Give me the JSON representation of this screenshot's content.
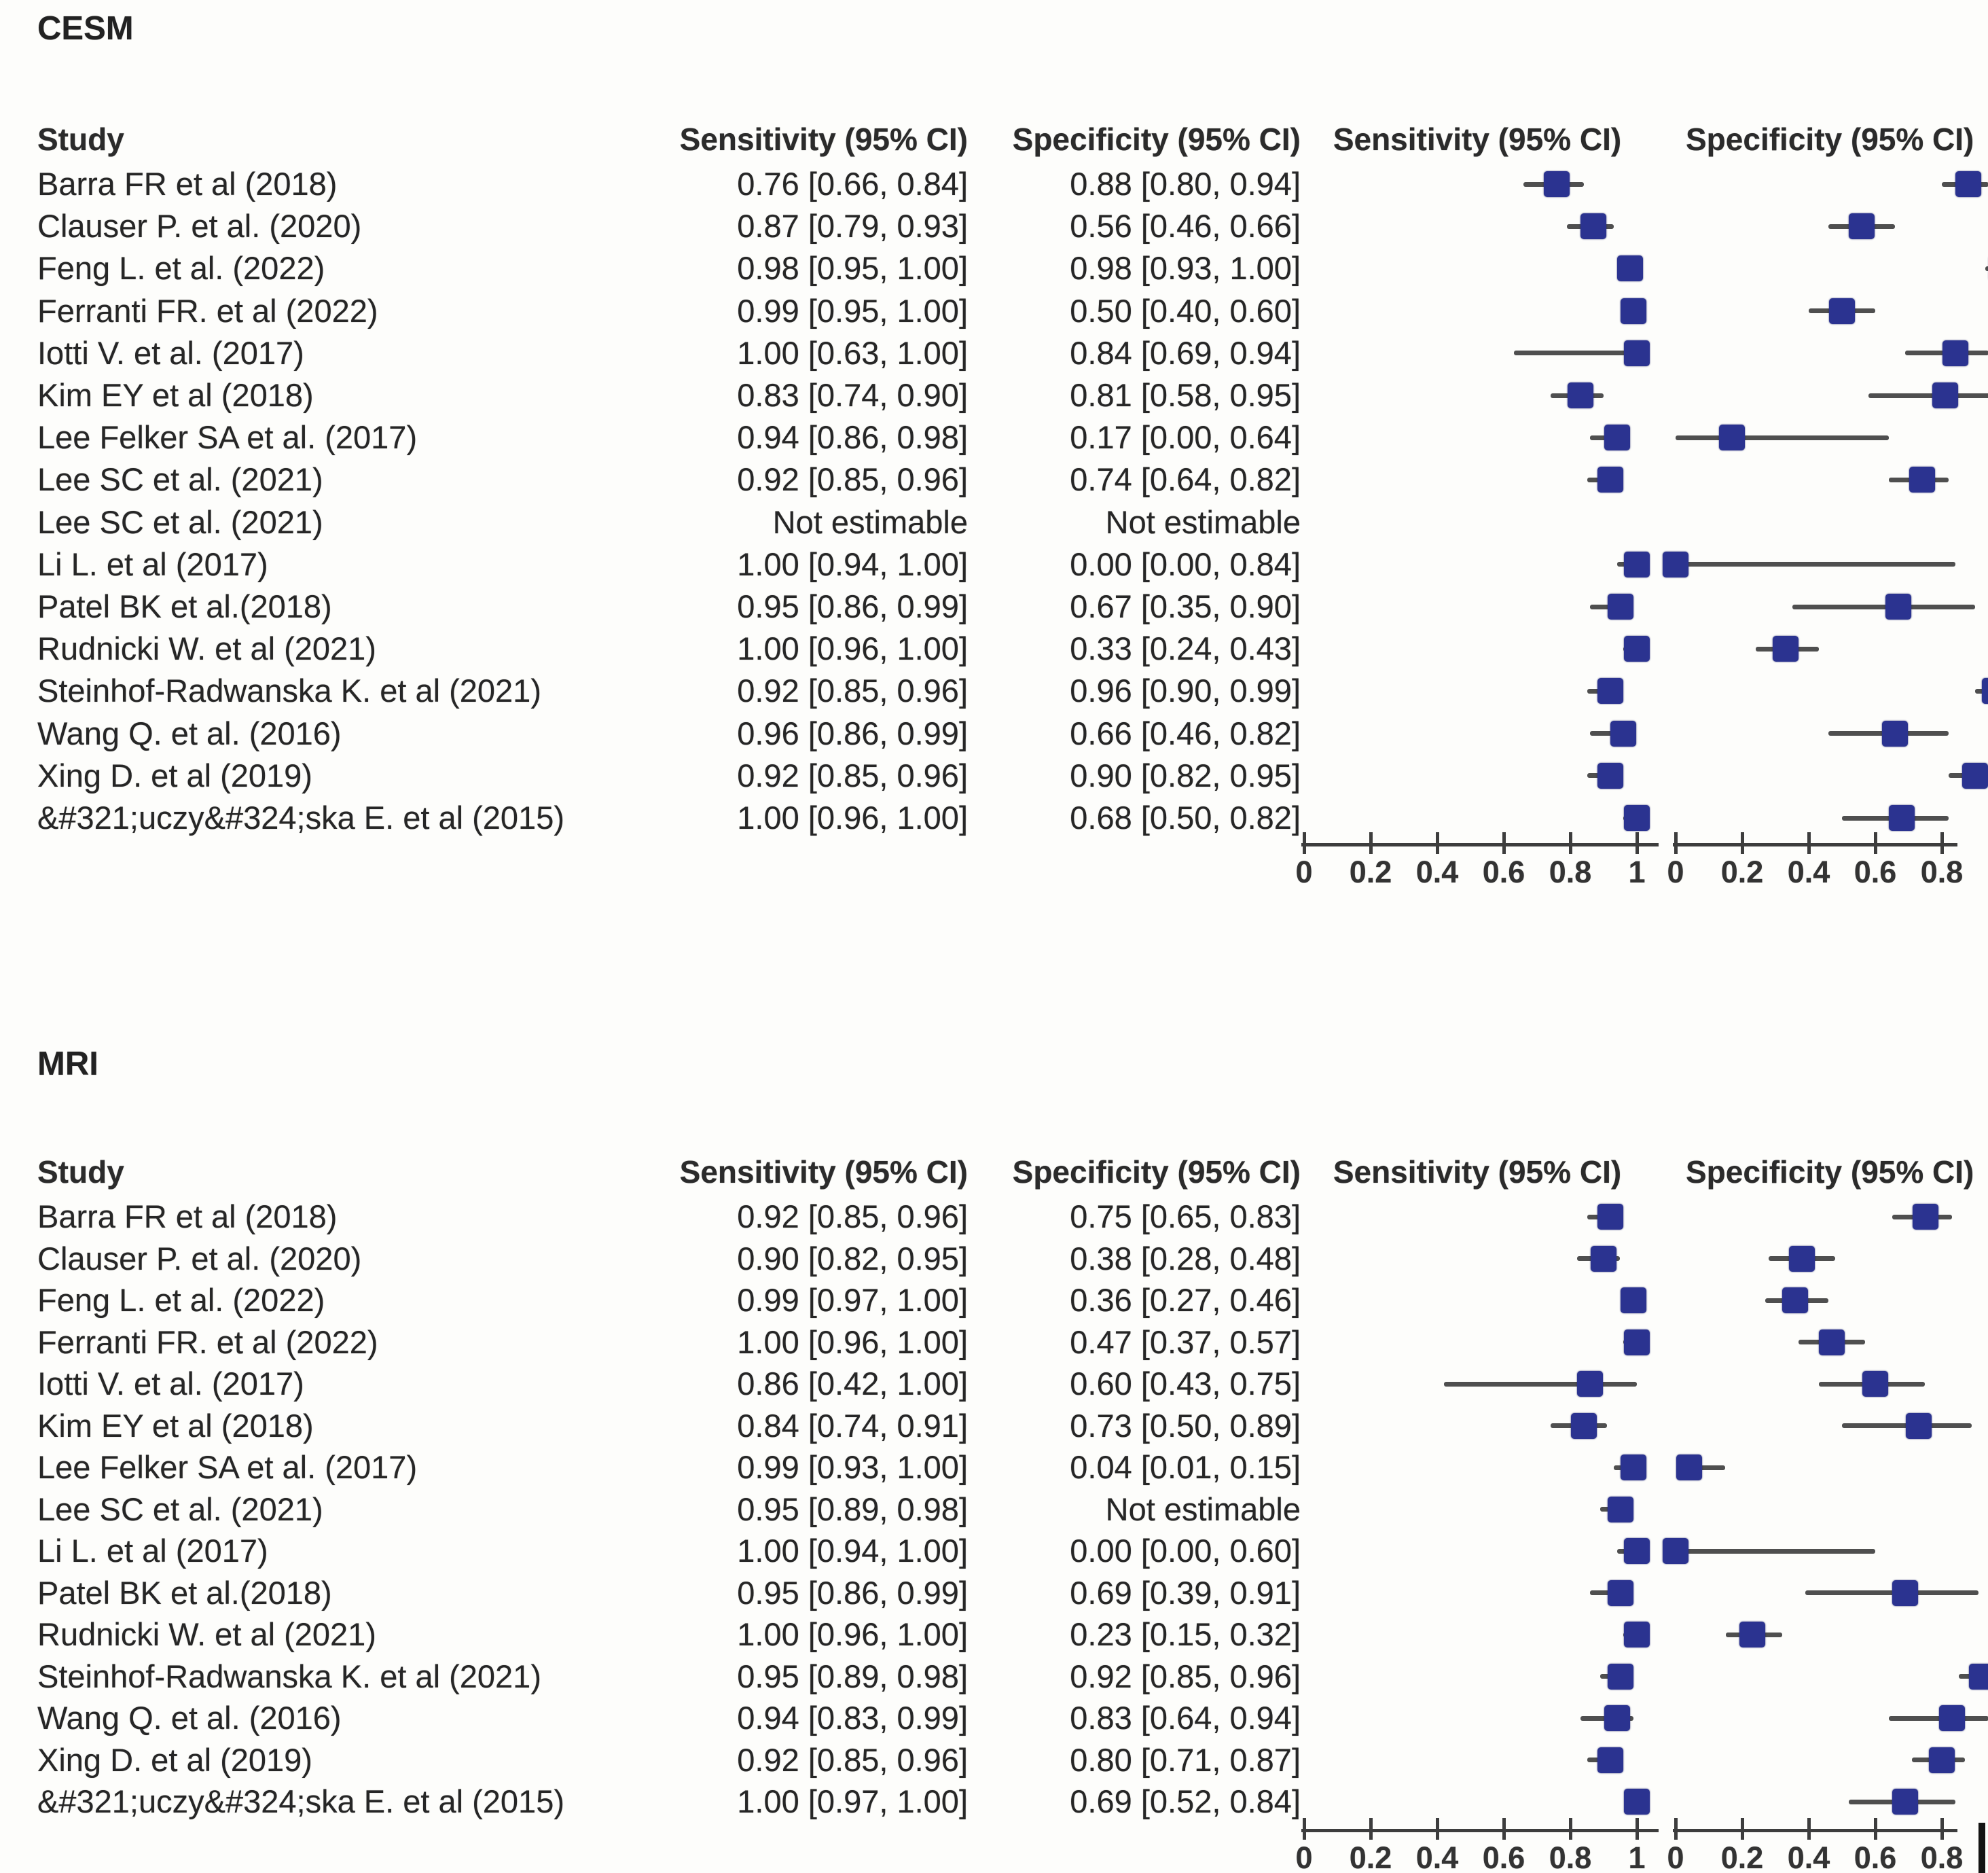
{
  "figure": {
    "not_estimable_label": "Not estimable",
    "colors": {
      "marker_blue": "#2b3390",
      "whisker_gray": "#4f4f4f",
      "axis_gray": "#3d3d3d",
      "text": "#262626",
      "background": "#fdfdfb"
    }
  },
  "chart_data": [
    {
      "type": "scatter",
      "subtype": "forest-plot",
      "title": "CESM",
      "headers": {
        "study": "Study",
        "sensitivity": "Sensitivity (95% CI)",
        "specificity": "Specificity (95% CI)",
        "plot_sensitivity": "Sensitivity (95% CI)",
        "plot_specificity": "Specificity (95% CI)"
      },
      "sens_axis": {
        "range": [
          0,
          1
        ],
        "ticks": [
          0,
          0.2,
          0.4,
          0.6,
          0.8,
          1
        ],
        "tick_labels": [
          "0",
          "0.2",
          "0.4",
          "0.6",
          "0.8",
          "1"
        ]
      },
      "spec_axis": {
        "range": [
          0,
          0.85
        ],
        "ticks": [
          0,
          0.2,
          0.4,
          0.6,
          0.8
        ],
        "tick_labels": [
          "0",
          "0.2",
          "0.4",
          "0.6",
          "0.8"
        ]
      },
      "rows": [
        {
          "study": "Barra FR et al (2018)",
          "sensitivity": {
            "label": "0.76 [0.66, 0.84]",
            "est": 0.76,
            "lo": 0.66,
            "hi": 0.84
          },
          "specificity": {
            "label": "0.88 [0.80, 0.94]",
            "est": 0.88,
            "lo": 0.8,
            "hi": 0.94
          }
        },
        {
          "study": "Clauser P. et al. (2020)",
          "sensitivity": {
            "label": "0.87 [0.79, 0.93]",
            "est": 0.87,
            "lo": 0.79,
            "hi": 0.93
          },
          "specificity": {
            "label": "0.56 [0.46, 0.66]",
            "est": 0.56,
            "lo": 0.46,
            "hi": 0.66
          }
        },
        {
          "study": "Feng L. et al. (2022)",
          "sensitivity": {
            "label": "0.98 [0.95, 1.00]",
            "est": 0.98,
            "lo": 0.95,
            "hi": 1.0
          },
          "specificity": {
            "label": "0.98 [0.93, 1.00]",
            "est": 0.98,
            "lo": 0.93,
            "hi": 1.0
          }
        },
        {
          "study": "Ferranti FR. et al (2022)",
          "sensitivity": {
            "label": "0.99 [0.95, 1.00]",
            "est": 0.99,
            "lo": 0.95,
            "hi": 1.0
          },
          "specificity": {
            "label": "0.50 [0.40, 0.60]",
            "est": 0.5,
            "lo": 0.4,
            "hi": 0.6
          }
        },
        {
          "study": "Iotti V. et al. (2017)",
          "sensitivity": {
            "label": "1.00 [0.63, 1.00]",
            "est": 1.0,
            "lo": 0.63,
            "hi": 1.0
          },
          "specificity": {
            "label": "0.84 [0.69, 0.94]",
            "est": 0.84,
            "lo": 0.69,
            "hi": 0.94
          }
        },
        {
          "study": "Kim EY et al (2018)",
          "sensitivity": {
            "label": "0.83 [0.74, 0.90]",
            "est": 0.83,
            "lo": 0.74,
            "hi": 0.9
          },
          "specificity": {
            "label": "0.81 [0.58, 0.95]",
            "est": 0.81,
            "lo": 0.58,
            "hi": 0.95
          }
        },
        {
          "study": "Lee Felker SA et al. (2017)",
          "sensitivity": {
            "label": "0.94 [0.86, 0.98]",
            "est": 0.94,
            "lo": 0.86,
            "hi": 0.98
          },
          "specificity": {
            "label": "0.17 [0.00, 0.64]",
            "est": 0.17,
            "lo": 0.0,
            "hi": 0.64
          }
        },
        {
          "study": "Lee SC et al. (2021)",
          "sensitivity": {
            "label": "0.92 [0.85, 0.96]",
            "est": 0.92,
            "lo": 0.85,
            "hi": 0.96
          },
          "specificity": {
            "label": "0.74 [0.64, 0.82]",
            "est": 0.74,
            "lo": 0.64,
            "hi": 0.82
          }
        },
        {
          "study": "Lee SC et al. (2021)",
          "sensitivity": {
            "label": "Not estimable",
            "est": null,
            "lo": null,
            "hi": null
          },
          "specificity": {
            "label": "Not estimable",
            "est": null,
            "lo": null,
            "hi": null
          }
        },
        {
          "study": "Li L. et al (2017)",
          "sensitivity": {
            "label": "1.00 [0.94, 1.00]",
            "est": 1.0,
            "lo": 0.94,
            "hi": 1.0
          },
          "specificity": {
            "label": "0.00 [0.00, 0.84]",
            "est": 0.0,
            "lo": 0.0,
            "hi": 0.84
          }
        },
        {
          "study": "Patel BK et al.(2018)",
          "sensitivity": {
            "label": "0.95 [0.86, 0.99]",
            "est": 0.95,
            "lo": 0.86,
            "hi": 0.99
          },
          "specificity": {
            "label": "0.67 [0.35, 0.90]",
            "est": 0.67,
            "lo": 0.35,
            "hi": 0.9
          }
        },
        {
          "study": "Rudnicki W. et al (2021)",
          "sensitivity": {
            "label": "1.00 [0.96, 1.00]",
            "est": 1.0,
            "lo": 0.96,
            "hi": 1.0
          },
          "specificity": {
            "label": "0.33 [0.24, 0.43]",
            "est": 0.33,
            "lo": 0.24,
            "hi": 0.43
          }
        },
        {
          "study": "Steinhof-Radwanska K. et al (2021)",
          "sensitivity": {
            "label": "0.92 [0.85, 0.96]",
            "est": 0.92,
            "lo": 0.85,
            "hi": 0.96
          },
          "specificity": {
            "label": "0.96 [0.90, 0.99]",
            "est": 0.96,
            "lo": 0.9,
            "hi": 0.99
          }
        },
        {
          "study": "Wang Q. et al. (2016)",
          "sensitivity": {
            "label": "0.96 [0.86, 0.99]",
            "est": 0.96,
            "lo": 0.86,
            "hi": 0.99
          },
          "specificity": {
            "label": "0.66 [0.46, 0.82]",
            "est": 0.66,
            "lo": 0.46,
            "hi": 0.82
          }
        },
        {
          "study": "Xing D. et al (2019)",
          "sensitivity": {
            "label": "0.92 [0.85, 0.96]",
            "est": 0.92,
            "lo": 0.85,
            "hi": 0.96
          },
          "specificity": {
            "label": "0.90 [0.82, 0.95]",
            "est": 0.9,
            "lo": 0.82,
            "hi": 0.95
          }
        },
        {
          "study": "&#321;uczy&#324;ska E. et al (2015)",
          "sensitivity": {
            "label": "1.00 [0.96, 1.00]",
            "est": 1.0,
            "lo": 0.96,
            "hi": 1.0
          },
          "specificity": {
            "label": "0.68 [0.50, 0.82]",
            "est": 0.68,
            "lo": 0.5,
            "hi": 0.82
          }
        }
      ]
    },
    {
      "type": "scatter",
      "subtype": "forest-plot",
      "title": "MRI",
      "headers": {
        "study": "Study",
        "sensitivity": "Sensitivity (95% CI)",
        "specificity": "Specificity (95% CI)",
        "plot_sensitivity": "Sensitivity (95% CI)",
        "plot_specificity": "Specificity (95% CI)"
      },
      "sens_axis": {
        "range": [
          0,
          1
        ],
        "ticks": [
          0,
          0.2,
          0.4,
          0.6,
          0.8,
          1
        ],
        "tick_labels": [
          "0",
          "0.2",
          "0.4",
          "0.6",
          "0.8",
          "1"
        ]
      },
      "spec_axis": {
        "range": [
          0,
          0.85
        ],
        "ticks": [
          0,
          0.2,
          0.4,
          0.6,
          0.8
        ],
        "tick_labels": [
          "0",
          "0.2",
          "0.4",
          "0.6",
          "0.8"
        ]
      },
      "rows": [
        {
          "study": "Barra FR et al (2018)",
          "sensitivity": {
            "label": "0.92 [0.85, 0.96]",
            "est": 0.92,
            "lo": 0.85,
            "hi": 0.96
          },
          "specificity": {
            "label": "0.75 [0.65, 0.83]",
            "est": 0.75,
            "lo": 0.65,
            "hi": 0.83
          }
        },
        {
          "study": "Clauser P. et al. (2020)",
          "sensitivity": {
            "label": "0.90 [0.82, 0.95]",
            "est": 0.9,
            "lo": 0.82,
            "hi": 0.95
          },
          "specificity": {
            "label": "0.38 [0.28, 0.48]",
            "est": 0.38,
            "lo": 0.28,
            "hi": 0.48
          }
        },
        {
          "study": "Feng L. et al. (2022)",
          "sensitivity": {
            "label": "0.99 [0.97, 1.00]",
            "est": 0.99,
            "lo": 0.97,
            "hi": 1.0
          },
          "specificity": {
            "label": "0.36 [0.27, 0.46]",
            "est": 0.36,
            "lo": 0.27,
            "hi": 0.46
          }
        },
        {
          "study": "Ferranti FR. et al (2022)",
          "sensitivity": {
            "label": "1.00 [0.96, 1.00]",
            "est": 1.0,
            "lo": 0.96,
            "hi": 1.0
          },
          "specificity": {
            "label": "0.47 [0.37, 0.57]",
            "est": 0.47,
            "lo": 0.37,
            "hi": 0.57
          }
        },
        {
          "study": "Iotti V. et al. (2017)",
          "sensitivity": {
            "label": "0.86 [0.42, 1.00]",
            "est": 0.86,
            "lo": 0.42,
            "hi": 1.0
          },
          "specificity": {
            "label": "0.60 [0.43, 0.75]",
            "est": 0.6,
            "lo": 0.43,
            "hi": 0.75
          }
        },
        {
          "study": "Kim EY et al (2018)",
          "sensitivity": {
            "label": "0.84 [0.74, 0.91]",
            "est": 0.84,
            "lo": 0.74,
            "hi": 0.91
          },
          "specificity": {
            "label": "0.73 [0.50, 0.89]",
            "est": 0.73,
            "lo": 0.5,
            "hi": 0.89
          }
        },
        {
          "study": "Lee Felker SA et al. (2017)",
          "sensitivity": {
            "label": "0.99 [0.93, 1.00]",
            "est": 0.99,
            "lo": 0.93,
            "hi": 1.0
          },
          "specificity": {
            "label": "0.04 [0.01, 0.15]",
            "est": 0.04,
            "lo": 0.01,
            "hi": 0.15
          }
        },
        {
          "study": "Lee SC et al. (2021)",
          "sensitivity": {
            "label": "0.95 [0.89, 0.98]",
            "est": 0.95,
            "lo": 0.89,
            "hi": 0.98
          },
          "specificity": {
            "label": "Not estimable",
            "est": null,
            "lo": null,
            "hi": null
          }
        },
        {
          "study": "Li L. et al (2017)",
          "sensitivity": {
            "label": "1.00 [0.94, 1.00]",
            "est": 1.0,
            "lo": 0.94,
            "hi": 1.0
          },
          "specificity": {
            "label": "0.00 [0.00, 0.60]",
            "est": 0.0,
            "lo": 0.0,
            "hi": 0.6
          }
        },
        {
          "study": "Patel BK et al.(2018)",
          "sensitivity": {
            "label": "0.95 [0.86, 0.99]",
            "est": 0.95,
            "lo": 0.86,
            "hi": 0.99
          },
          "specificity": {
            "label": "0.69 [0.39, 0.91]",
            "est": 0.69,
            "lo": 0.39,
            "hi": 0.91
          }
        },
        {
          "study": "Rudnicki W. et al (2021)",
          "sensitivity": {
            "label": "1.00 [0.96, 1.00]",
            "est": 1.0,
            "lo": 0.96,
            "hi": 1.0
          },
          "specificity": {
            "label": "0.23 [0.15, 0.32]",
            "est": 0.23,
            "lo": 0.15,
            "hi": 0.32
          }
        },
        {
          "study": "Steinhof-Radwanska K. et al (2021)",
          "sensitivity": {
            "label": "0.95 [0.89, 0.98]",
            "est": 0.95,
            "lo": 0.89,
            "hi": 0.98
          },
          "specificity": {
            "label": "0.92 [0.85, 0.96]",
            "est": 0.92,
            "lo": 0.85,
            "hi": 0.96
          }
        },
        {
          "study": "Wang Q. et al. (2016)",
          "sensitivity": {
            "label": "0.94 [0.83, 0.99]",
            "est": 0.94,
            "lo": 0.83,
            "hi": 0.99
          },
          "specificity": {
            "label": "0.83 [0.64, 0.94]",
            "est": 0.83,
            "lo": 0.64,
            "hi": 0.94
          }
        },
        {
          "study": "Xing D. et al (2019)",
          "sensitivity": {
            "label": "0.92 [0.85, 0.96]",
            "est": 0.92,
            "lo": 0.85,
            "hi": 0.96
          },
          "specificity": {
            "label": "0.80 [0.71, 0.87]",
            "est": 0.8,
            "lo": 0.71,
            "hi": 0.87
          }
        },
        {
          "study": "&#321;uczy&#324;ska E. et al (2015)",
          "sensitivity": {
            "label": "1.00 [0.97, 1.00]",
            "est": 1.0,
            "lo": 0.97,
            "hi": 1.0
          },
          "specificity": {
            "label": "0.69 [0.52, 0.84]",
            "est": 0.69,
            "lo": 0.52,
            "hi": 0.84
          }
        }
      ]
    }
  ]
}
